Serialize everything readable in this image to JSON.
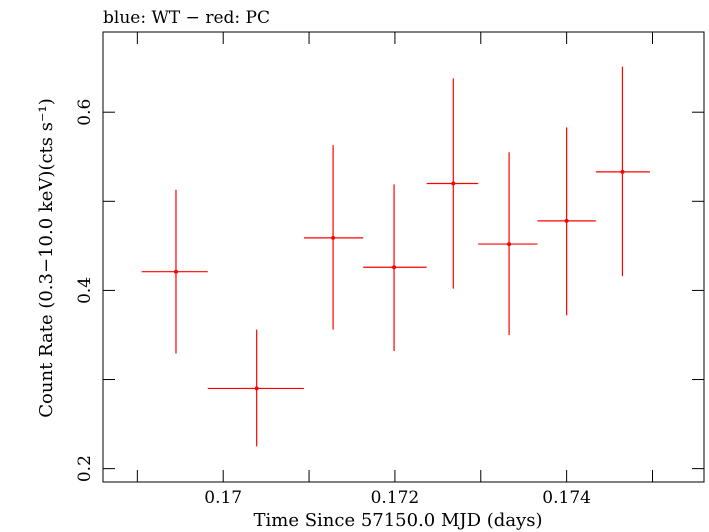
{
  "chart_data": {
    "type": "scatter",
    "title": "blue: WT − red: PC",
    "xlabel": "Time Since 57150.0 MJD (days)",
    "ylabel": "Count Rate (0.3−10.0 keV)(cts s⁻¹)",
    "xlim": [
      0.1686,
      0.1756
    ],
    "ylim": [
      0.185,
      0.69
    ],
    "x_ticks": [
      0.17,
      0.172,
      0.174
    ],
    "x_tick_labels": [
      "0.17",
      "0.172",
      "0.174"
    ],
    "y_ticks": [
      0.2,
      0.4,
      0.6
    ],
    "y_tick_labels": [
      "0.2",
      "0.4",
      "0.6"
    ],
    "grid": false,
    "series": [
      {
        "color": "#ff0000",
        "points": [
          {
            "x": 0.16945,
            "y": 0.421,
            "xlo": 0.16905,
            "xhi": 0.16982,
            "ylo": 0.329,
            "yhi": 0.513
          },
          {
            "x": 0.17039,
            "y": 0.29,
            "xlo": 0.16982,
            "xhi": 0.17094,
            "ylo": 0.225,
            "yhi": 0.356
          },
          {
            "x": 0.17128,
            "y": 0.459,
            "xlo": 0.17094,
            "xhi": 0.17163,
            "ylo": 0.356,
            "yhi": 0.563
          },
          {
            "x": 0.17199,
            "y": 0.426,
            "xlo": 0.17163,
            "xhi": 0.17237,
            "ylo": 0.332,
            "yhi": 0.519
          },
          {
            "x": 0.17268,
            "y": 0.52,
            "xlo": 0.17237,
            "xhi": 0.17297,
            "ylo": 0.402,
            "yhi": 0.638
          },
          {
            "x": 0.17333,
            "y": 0.452,
            "xlo": 0.17297,
            "xhi": 0.17366,
            "ylo": 0.35,
            "yhi": 0.555
          },
          {
            "x": 0.174,
            "y": 0.478,
            "xlo": 0.17366,
            "xhi": 0.17434,
            "ylo": 0.372,
            "yhi": 0.583
          },
          {
            "x": 0.17465,
            "y": 0.533,
            "xlo": 0.17434,
            "xhi": 0.17497,
            "ylo": 0.416,
            "yhi": 0.651
          }
        ]
      }
    ]
  }
}
